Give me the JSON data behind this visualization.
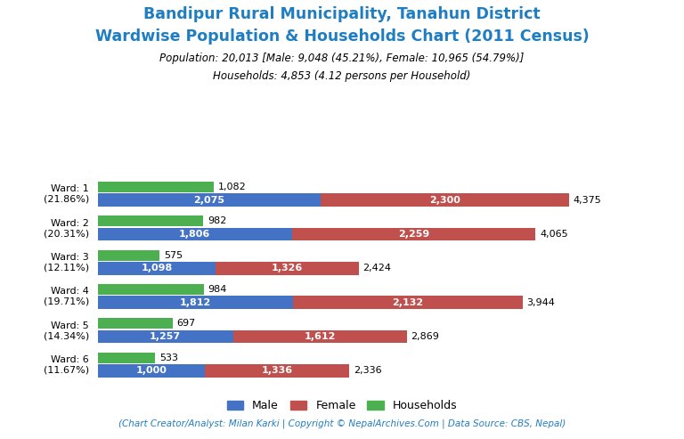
{
  "title_line1": "Bandipur Rural Municipality, Tanahun District",
  "title_line2": "Wardwise Population & Households Chart (2011 Census)",
  "subtitle_line1": "Population: 20,013 [Male: 9,048 (45.21%), Female: 10,965 (54.79%)]",
  "subtitle_line2": "Households: 4,853 (4.12 persons per Household)",
  "footer": "(Chart Creator/Analyst: Milan Karki | Copyright © NepalArchives.Com | Data Source: CBS, Nepal)",
  "wards": [
    {
      "label": "Ward: 1\n(21.86%)",
      "male": 2075,
      "female": 2300,
      "households": 1082,
      "total": 4375
    },
    {
      "label": "Ward: 2\n(20.31%)",
      "male": 1806,
      "female": 2259,
      "households": 982,
      "total": 4065
    },
    {
      "label": "Ward: 3\n(12.11%)",
      "male": 1098,
      "female": 1326,
      "households": 575,
      "total": 2424
    },
    {
      "label": "Ward: 4\n(19.71%)",
      "male": 1812,
      "female": 2132,
      "households": 984,
      "total": 3944
    },
    {
      "label": "Ward: 5\n(14.34%)",
      "male": 1257,
      "female": 1612,
      "households": 697,
      "total": 2869
    },
    {
      "label": "Ward: 6\n(11.67%)",
      "male": 1000,
      "female": 1336,
      "households": 533,
      "total": 2336
    }
  ],
  "colors": {
    "male": "#4472C4",
    "female": "#C0504D",
    "households": "#4CAF50",
    "title": "#1F7EC2",
    "subtitle": "#000000",
    "footer": "#1F7EC2",
    "bar_text": "#FFFFFF",
    "outside_text": "#000000"
  },
  "figsize": [
    7.68,
    4.93
  ],
  "dpi": 100
}
